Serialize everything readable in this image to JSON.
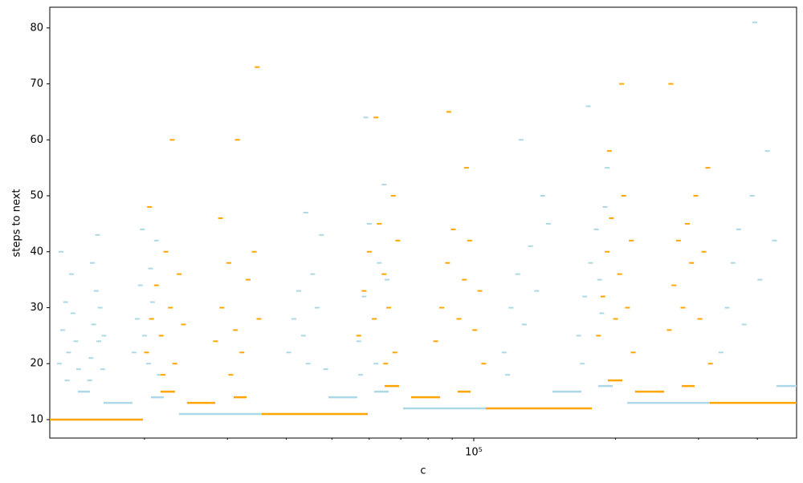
{
  "chart_data": {
    "type": "scatter",
    "xlabel": "c",
    "ylabel": "steps to next",
    "xscale": "log",
    "xlim": [
      12590,
      484500
    ],
    "ylim": [
      6.7,
      83.7
    ],
    "xticks": [
      {
        "value": 100000,
        "label": "10⁵"
      }
    ],
    "xminor_ticks": [
      20000,
      30000,
      40000,
      50000,
      60000,
      70000,
      80000,
      90000,
      200000,
      300000,
      400000
    ],
    "yticks": [
      10,
      20,
      30,
      40,
      50,
      60,
      70,
      80
    ],
    "series": [
      {
        "color": "#add8e6",
        "x": [
          13200,
          13400,
          13600,
          13800,
          14000,
          14300,
          14500,
          13300,
          14100,
          13700,
          15400,
          15600,
          15800,
          16000,
          16300,
          15500,
          16100,
          15900,
          15300,
          16400,
          19000,
          19300,
          19600,
          20000,
          20400,
          20800,
          21200,
          19800,
          21500,
          20600,
          40500,
          41500,
          42500,
          43500,
          44500,
          45500,
          46500,
          47500,
          44000,
          48500,
          57000,
          58500,
          60000,
          61500,
          63000,
          64500,
          59000,
          62000,
          57500,
          65500,
          116000,
          120000,
          124000,
          128000,
          132000,
          136000,
          140000,
          126000,
          118000,
          144000,
          167000,
          172000,
          177000,
          182000,
          187000,
          192000,
          175000,
          170000,
          185000,
          190000,
          335000,
          345000,
          355000,
          365000,
          375000,
          390000,
          405000,
          420000,
          395000,
          435000
        ],
        "y": [
          20,
          26,
          31,
          22,
          36,
          24,
          19,
          40,
          29,
          17,
          21,
          27,
          33,
          24,
          19,
          38,
          30,
          43,
          17,
          25,
          22,
          28,
          34,
          25,
          20,
          31,
          42,
          44,
          18,
          37,
          22,
          28,
          33,
          25,
          20,
          36,
          30,
          43,
          47,
          19,
          24,
          32,
          45,
          28,
          38,
          52,
          64,
          20,
          18,
          35,
          22,
          30,
          36,
          27,
          41,
          33,
          50,
          60,
          18,
          45,
          25,
          32,
          38,
          44,
          29,
          55,
          66,
          20,
          35,
          48,
          22,
          30,
          38,
          44,
          27,
          50,
          35,
          58,
          81,
          42
        ]
      },
      {
        "color": "#ffa500",
        "x": [
          20200,
          20700,
          21200,
          21700,
          22200,
          22700,
          23200,
          23700,
          20500,
          24200,
          21900,
          22900,
          28300,
          29200,
          30200,
          31200,
          32200,
          33200,
          34200,
          35000,
          29000,
          31500,
          34700,
          30500,
          57000,
          58500,
          60000,
          61500,
          63000,
          64500,
          66000,
          67500,
          69000,
          62000,
          68000,
          65000,
          83000,
          85500,
          88000,
          90500,
          93000,
          95500,
          98000,
          100500,
          103000,
          88500,
          96500,
          105000,
          184000,
          188000,
          192000,
          196000,
          200000,
          204000,
          208000,
          212000,
          216000,
          206000,
          194000,
          218000,
          260000,
          266000,
          272000,
          278000,
          284000,
          290000,
          296000,
          302000,
          308000,
          314000,
          262000,
          318000
        ],
        "y": [
          22,
          28,
          34,
          25,
          40,
          30,
          20,
          36,
          48,
          27,
          18,
          60,
          24,
          30,
          38,
          26,
          22,
          35,
          40,
          28,
          46,
          60,
          73,
          18,
          25,
          33,
          40,
          28,
          45,
          36,
          30,
          50,
          42,
          64,
          22,
          20,
          24,
          30,
          38,
          44,
          28,
          35,
          42,
          26,
          33,
          65,
          55,
          20,
          25,
          32,
          40,
          46,
          28,
          36,
          50,
          30,
          42,
          70,
          58,
          22,
          26,
          34,
          42,
          30,
          45,
          38,
          50,
          28,
          40,
          55,
          70,
          20
        ]
      }
    ],
    "segments": [
      {
        "color": "#ffa500",
        "x": [
          12590,
          19850
        ],
        "y": 10
      },
      {
        "color": "#add8e6",
        "x": [
          14440,
          15320
        ],
        "y": 15
      },
      {
        "color": "#add8e6",
        "x": [
          16370,
          18860
        ],
        "y": 13
      },
      {
        "color": "#add8e6",
        "x": [
          20640,
          21980
        ],
        "y": 14
      },
      {
        "color": "#ffa500",
        "x": [
          21640,
          23210
        ],
        "y": 15
      },
      {
        "color": "#add8e6",
        "x": [
          23680,
          35480
        ],
        "y": 11
      },
      {
        "color": "#ffa500",
        "x": [
          24620,
          28260
        ],
        "y": 13
      },
      {
        "color": "#ffa500",
        "x": [
          30930,
          32940
        ],
        "y": 14
      },
      {
        "color": "#ffa500",
        "x": [
          35480,
          59570
        ],
        "y": 11
      },
      {
        "color": "#add8e6",
        "x": [
          49140,
          56590
        ],
        "y": 14
      },
      {
        "color": "#add8e6",
        "x": [
          61470,
          65980
        ],
        "y": 15
      },
      {
        "color": "#ffa500",
        "x": [
          64670,
          69430
        ],
        "y": 16
      },
      {
        "color": "#add8e6",
        "x": [
          70790,
          106070
        ],
        "y": 12
      },
      {
        "color": "#ffa500",
        "x": [
          73620,
          84810
        ],
        "y": 14
      },
      {
        "color": "#ffa500",
        "x": [
          92440,
          98440
        ],
        "y": 15
      },
      {
        "color": "#ffa500",
        "x": [
          106070,
          178100
        ],
        "y": 12
      },
      {
        "color": "#add8e6",
        "x": [
          146900,
          169200
        ],
        "y": 15
      },
      {
        "color": "#add8e6",
        "x": [
          183700,
          197200
        ],
        "y": 16
      },
      {
        "color": "#ffa500",
        "x": [
          192600,
          206700
        ],
        "y": 17
      },
      {
        "color": "#add8e6",
        "x": [
          211700,
          317100
        ],
        "y": 13
      },
      {
        "color": "#ffa500",
        "x": [
          220100,
          253500
        ],
        "y": 15
      },
      {
        "color": "#ffa500",
        "x": [
          276400,
          294300
        ],
        "y": 16
      },
      {
        "color": "#ffa500",
        "x": [
          317100,
          484500
        ],
        "y": 13
      },
      {
        "color": "#add8e6",
        "x": [
          439200,
          484500
        ],
        "y": 16
      }
    ]
  }
}
